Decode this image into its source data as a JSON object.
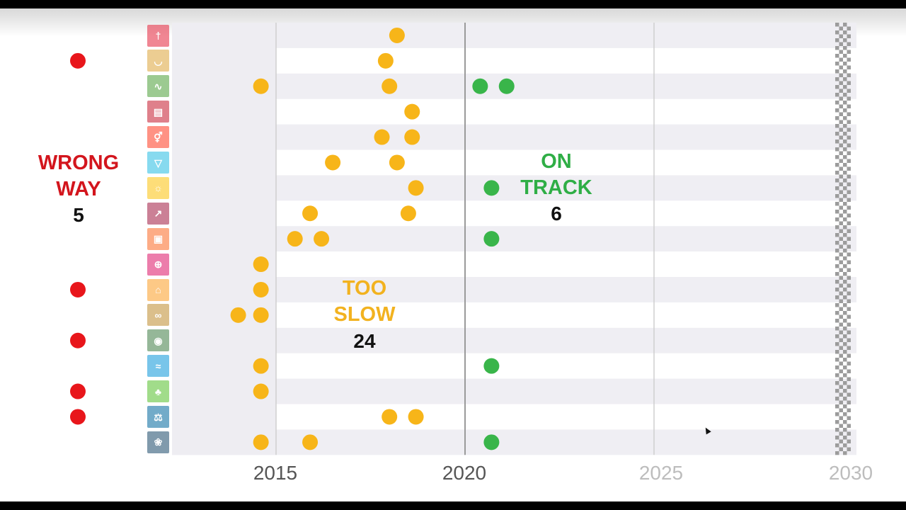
{
  "chart_data": {
    "type": "scatter",
    "x_range": [
      2012.5,
      2030
    ],
    "x_ticks": [
      "2015",
      "2020",
      "2025",
      "2030"
    ],
    "row_count": 17,
    "gridlines_at": [
      2015,
      2020,
      2025
    ],
    "category_colors": {
      "wrong_way": "#e8161b",
      "too_slow": "#f7b519",
      "on_track": "#39b54a"
    },
    "categories": [
      {
        "key": "wrong_way",
        "label_lines": [
          "WRONG",
          "WAY"
        ],
        "count": "5",
        "color": "#d3151d"
      },
      {
        "key": "too_slow",
        "label_lines": [
          "TOO",
          "SLOW"
        ],
        "count": "24",
        "color": "#f2b21f"
      },
      {
        "key": "on_track",
        "label_lines": [
          "ON",
          "TRACK"
        ],
        "count": "6",
        "color": "#2fae46"
      }
    ],
    "wrong_way_rows": [
      2,
      11,
      13,
      15,
      16
    ],
    "points": [
      {
        "row": 1,
        "x": 2018.2,
        "category": "too_slow"
      },
      {
        "row": 2,
        "x": 2017.9,
        "category": "too_slow"
      },
      {
        "row": 3,
        "x": 2014.6,
        "category": "too_slow"
      },
      {
        "row": 3,
        "x": 2018.0,
        "category": "too_slow"
      },
      {
        "row": 3,
        "x": 2020.4,
        "category": "on_track"
      },
      {
        "row": 3,
        "x": 2021.1,
        "category": "on_track"
      },
      {
        "row": 4,
        "x": 2018.6,
        "category": "too_slow"
      },
      {
        "row": 5,
        "x": 2017.8,
        "category": "too_slow"
      },
      {
        "row": 5,
        "x": 2018.6,
        "category": "too_slow"
      },
      {
        "row": 6,
        "x": 2016.5,
        "category": "too_slow"
      },
      {
        "row": 6,
        "x": 2018.2,
        "category": "too_slow"
      },
      {
        "row": 7,
        "x": 2018.7,
        "category": "too_slow"
      },
      {
        "row": 7,
        "x": 2020.7,
        "category": "on_track"
      },
      {
        "row": 8,
        "x": 2015.9,
        "category": "too_slow"
      },
      {
        "row": 8,
        "x": 2018.5,
        "category": "too_slow"
      },
      {
        "row": 9,
        "x": 2015.5,
        "category": "too_slow"
      },
      {
        "row": 9,
        "x": 2016.2,
        "category": "too_slow"
      },
      {
        "row": 9,
        "x": 2020.7,
        "category": "on_track"
      },
      {
        "row": 10,
        "x": 2014.6,
        "category": "too_slow"
      },
      {
        "row": 11,
        "x": 2014.6,
        "category": "too_slow"
      },
      {
        "row": 12,
        "x": 2014.0,
        "category": "too_slow"
      },
      {
        "row": 12,
        "x": 2014.6,
        "category": "too_slow"
      },
      {
        "row": 14,
        "x": 2014.6,
        "category": "too_slow"
      },
      {
        "row": 14,
        "x": 2020.7,
        "category": "on_track"
      },
      {
        "row": 15,
        "x": 2014.6,
        "category": "too_slow"
      },
      {
        "row": 16,
        "x": 2018.0,
        "category": "too_slow"
      },
      {
        "row": 16,
        "x": 2018.7,
        "category": "too_slow"
      },
      {
        "row": 17,
        "x": 2014.6,
        "category": "too_slow"
      },
      {
        "row": 17,
        "x": 2015.9,
        "category": "too_slow"
      },
      {
        "row": 17,
        "x": 2020.7,
        "category": "on_track"
      }
    ],
    "grid": true,
    "legend": "none"
  },
  "sdg_icons": [
    {
      "name": "no-poverty-icon",
      "color": "#e5243b",
      "glyph": "†"
    },
    {
      "name": "zero-hunger-icon",
      "color": "#dda63a",
      "glyph": "◡"
    },
    {
      "name": "good-health-icon",
      "color": "#4c9f38",
      "glyph": "∿"
    },
    {
      "name": "quality-education-icon",
      "color": "#c5192d",
      "glyph": "▤"
    },
    {
      "name": "gender-equality-icon",
      "color": "#ff3a21",
      "glyph": "⚥"
    },
    {
      "name": "clean-water-icon",
      "color": "#26bde2",
      "glyph": "▽"
    },
    {
      "name": "clean-energy-icon",
      "color": "#fcc30b",
      "glyph": "☼"
    },
    {
      "name": "decent-work-icon",
      "color": "#a21942",
      "glyph": "↗"
    },
    {
      "name": "industry-innovation-icon",
      "color": "#fd6925",
      "glyph": "▣"
    },
    {
      "name": "reduced-inequalities-icon",
      "color": "#dd1367",
      "glyph": "⊕"
    },
    {
      "name": "sustainable-cities-icon",
      "color": "#fd9d24",
      "glyph": "⌂"
    },
    {
      "name": "responsible-consumption-icon",
      "color": "#bf8b2e",
      "glyph": "∞"
    },
    {
      "name": "climate-action-icon",
      "color": "#3f7e44",
      "glyph": "◉"
    },
    {
      "name": "life-below-water-icon",
      "color": "#0a97d9",
      "glyph": "≈"
    },
    {
      "name": "life-on-land-icon",
      "color": "#56c02b",
      "glyph": "♣"
    },
    {
      "name": "peace-justice-icon",
      "color": "#00689d",
      "glyph": "⚖"
    },
    {
      "name": "partnerships-icon",
      "color": "#19486a",
      "glyph": "❀"
    }
  ],
  "colors": {
    "row_band": "#efeef3",
    "pre_2015_band": "#eeedf2",
    "gridline_major": "#a8a8a8",
    "gridline_minor": "#cfcfcf",
    "tick_dark": "#555555",
    "tick_light": "#bdbdbd"
  }
}
